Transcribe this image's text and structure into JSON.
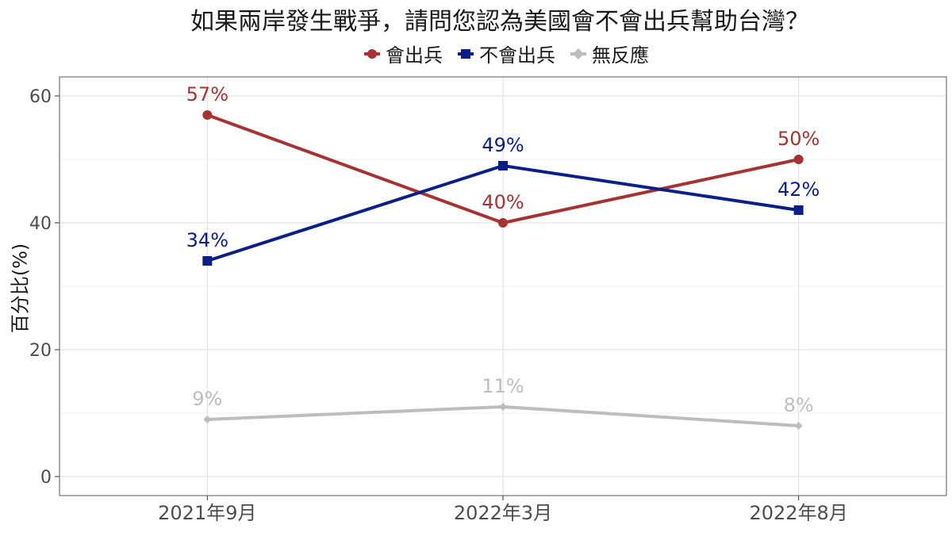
{
  "chart_data": {
    "type": "line",
    "title": "如果兩岸發生戰爭，請問您認為美國會不會出兵幫助台灣？",
    "xlabel": "",
    "ylabel": "百分比(%)",
    "categories": [
      "2021年9月",
      "2022年3月",
      "2022年8月"
    ],
    "ylim": [
      -3,
      63
    ],
    "yticks": [
      0,
      20,
      40,
      60
    ],
    "grid": true,
    "legend_position": "top",
    "series": [
      {
        "name": "會出兵",
        "values": [
          57,
          40,
          50
        ],
        "labels": [
          "57%",
          "40%",
          "50%"
        ],
        "color": "#a73232",
        "marker": "circle"
      },
      {
        "name": "不會出兵",
        "values": [
          34,
          49,
          42
        ],
        "labels": [
          "34%",
          "49%",
          "42%"
        ],
        "color": "#0a1f87",
        "marker": "square"
      },
      {
        "name": "無反應",
        "values": [
          9,
          11,
          8
        ],
        "labels": [
          "9%",
          "11%",
          "8%"
        ],
        "color": "#bdbdbd",
        "marker": "diamond"
      }
    ]
  }
}
